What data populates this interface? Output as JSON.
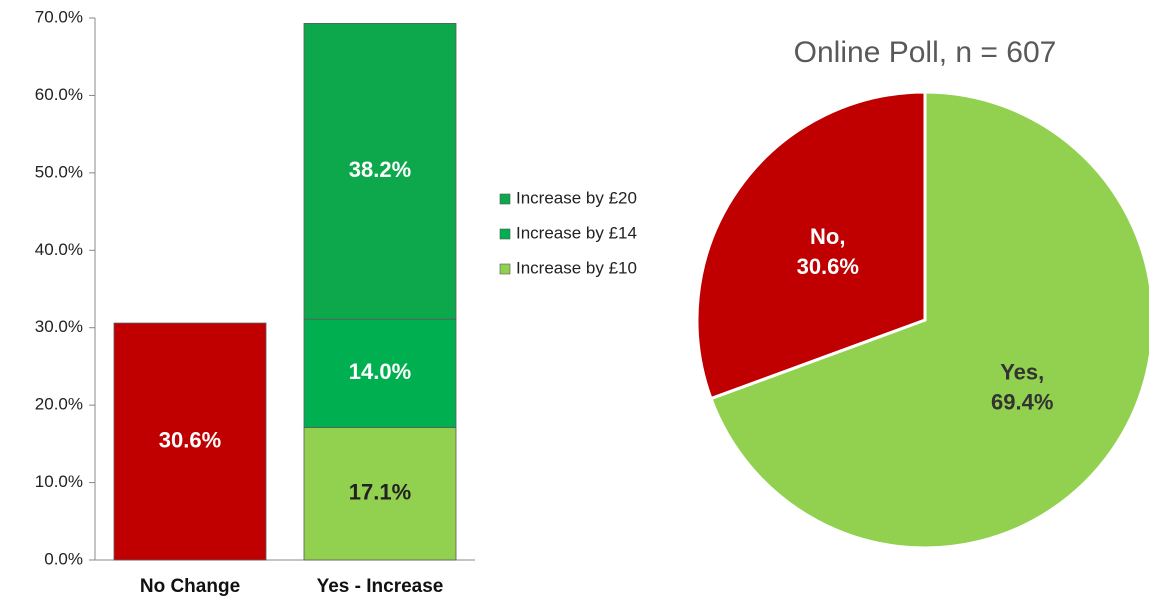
{
  "chart_data": [
    {
      "type": "bar",
      "categories": [
        "No Change",
        "Yes - Increase"
      ],
      "series": [
        {
          "color": "#c00000",
          "label_color": "#ffffff",
          "values": [
            30.6,
            null
          ],
          "value_labels": [
            "30.6%",
            null
          ]
        },
        {
          "name": "Increase by £10",
          "color": "#92d050",
          "label_color": "#222222",
          "values": [
            null,
            17.1
          ],
          "value_labels": [
            null,
            "17.1%"
          ]
        },
        {
          "name": "Increase by £14",
          "color": "#00b050",
          "label_color": "#ffffff",
          "values": [
            null,
            14.0
          ],
          "value_labels": [
            null,
            "14.0%"
          ]
        },
        {
          "name": "Increase by £20",
          "color": "#0ea84c",
          "label_color": "#ffffff",
          "values": [
            null,
            38.2
          ],
          "value_labels": [
            null,
            "38.2%"
          ]
        }
      ],
      "ylim": [
        0,
        70
      ],
      "yticks": [
        {
          "value": 0,
          "label": "0.0%"
        },
        {
          "value": 10,
          "label": "10.0%"
        },
        {
          "value": 20,
          "label": "20.0%"
        },
        {
          "value": 30,
          "label": "30.0%"
        },
        {
          "value": 40,
          "label": "40.0%"
        },
        {
          "value": 50,
          "label": "50.0%"
        },
        {
          "value": 60,
          "label": "60.0%"
        },
        {
          "value": 70,
          "label": "70.0%"
        }
      ],
      "grid": false,
      "legend": "right"
    },
    {
      "type": "pie",
      "title": "Online Poll, n = 607",
      "categories": [
        "Yes,",
        "No,"
      ],
      "values": [
        69.4,
        30.6
      ],
      "value_labels": [
        "69.4%",
        "30.6%"
      ],
      "colors": [
        "#92d050",
        "#c00000"
      ],
      "label_colors": [
        "#333333",
        "#ffffff"
      ]
    }
  ]
}
